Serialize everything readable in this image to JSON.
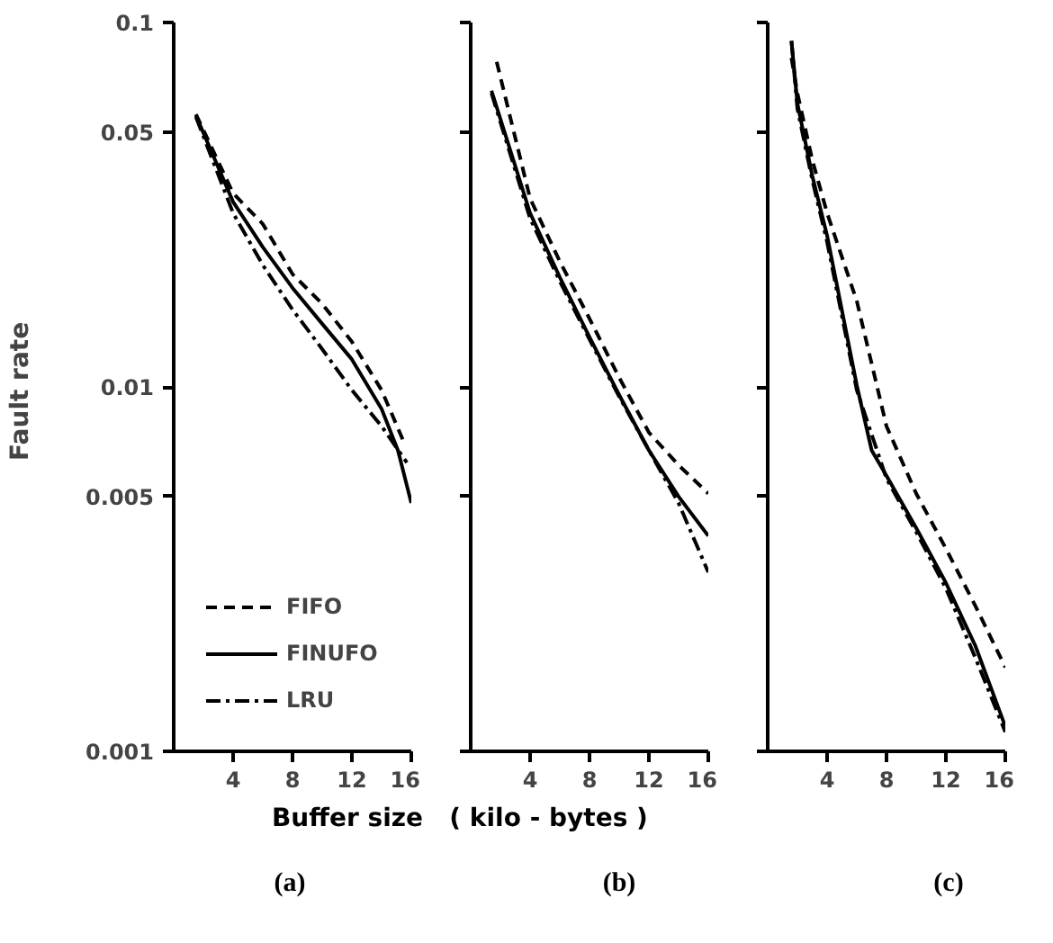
{
  "chart_data": [
    {
      "type": "line",
      "title": "(a)",
      "xlabel": "Buffer size   ( kilo - bytes )",
      "ylabel": "Fault  rate",
      "log": "y",
      "xlim": [
        0,
        16
      ],
      "xticks": [
        4,
        8,
        12,
        16
      ],
      "ylim": [
        0.001,
        0.1
      ],
      "yticks": [
        0.001,
        0.005,
        0.01,
        0.05,
        0.1
      ],
      "legend": "bottom left",
      "grid": false,
      "series": [
        {
          "name": "FIFO",
          "color": "#000000",
          "line_style": "dashed",
          "x": [
            1.5,
            4,
            6,
            8,
            10,
            12,
            14,
            15.6
          ],
          "values": [
            0.056,
            0.034,
            0.028,
            0.0204,
            0.0169,
            0.0133,
            0.0098,
            0.0069
          ]
        },
        {
          "name": "FINUFO",
          "color": "#000000",
          "line_style": "solid",
          "x": [
            1.5,
            4,
            6,
            8,
            10,
            12,
            14,
            15.1,
            16
          ],
          "values": [
            0.0555,
            0.0322,
            0.0242,
            0.0187,
            0.0149,
            0.0119,
            0.0087,
            0.0067,
            0.0048
          ]
        },
        {
          "name": "LRU",
          "color": "#000000",
          "line_style": "dashdot",
          "x": [
            1.5,
            4,
            6,
            8,
            10,
            12,
            14,
            15.7
          ],
          "values": [
            0.055,
            0.03,
            0.0216,
            0.0163,
            0.0127,
            0.0098,
            0.0078,
            0.0062
          ]
        }
      ]
    },
    {
      "type": "line",
      "title": "(b)",
      "log": "y",
      "xlim": [
        0,
        16
      ],
      "xticks": [
        4,
        8,
        12,
        16
      ],
      "ylim": [
        0.001,
        0.1
      ],
      "yticks": [
        {
          "value": 0.001,
          "label": null
        },
        {
          "value": 0.005,
          "label": null
        },
        {
          "value": 0.01,
          "label": null
        },
        {
          "value": 0.05,
          "label": null
        },
        {
          "value": 0.1,
          "label": null
        }
      ],
      "tick_labels": "x",
      "grid": false,
      "series": [
        {
          "color": "#000000",
          "line_style": "dashed",
          "x": [
            1.75,
            4,
            6,
            8,
            10,
            12,
            14,
            16
          ],
          "values": [
            0.078,
            0.0329,
            0.0221,
            0.0154,
            0.0106,
            0.0075,
            0.0061,
            0.0051
          ]
        },
        {
          "color": "#000000",
          "line_style": "solid",
          "x": [
            1.4,
            4,
            6,
            8,
            10,
            12,
            14,
            16
          ],
          "values": [
            0.065,
            0.03,
            0.02,
            0.0137,
            0.0095,
            0.0067,
            0.005,
            0.0039
          ]
        },
        {
          "color": "#000000",
          "line_style": "dashdot",
          "x": [
            1.4,
            4,
            6,
            8,
            10,
            12,
            14,
            16
          ],
          "values": [
            0.064,
            0.029,
            0.0195,
            0.0135,
            0.0094,
            0.0067,
            0.0048,
            0.0031
          ]
        }
      ]
    },
    {
      "type": "line",
      "title": "(c)",
      "log": "y",
      "xlim": [
        0,
        16
      ],
      "xticks": [
        4,
        8,
        12,
        16
      ],
      "ylim": [
        0.001,
        0.1
      ],
      "yticks": [
        {
          "value": 0.001,
          "label": null
        },
        {
          "value": 0.005,
          "label": null
        },
        {
          "value": 0.01,
          "label": null
        },
        {
          "value": 0.05,
          "label": null
        },
        {
          "value": 0.1,
          "label": null
        }
      ],
      "tick_labels": "x",
      "grid": false,
      "series": [
        {
          "color": "#000000",
          "line_style": "dashed",
          "x": [
            1.6,
            2,
            3,
            4,
            6,
            8,
            10,
            12,
            14,
            16
          ],
          "values": [
            0.08,
            0.064,
            0.042,
            0.03,
            0.0172,
            0.0078,
            0.0051,
            0.0036,
            0.0025,
            0.0017
          ]
        },
        {
          "color": "#000000",
          "line_style": "solid",
          "x": [
            1.6,
            2,
            3,
            4,
            6,
            7,
            8,
            10,
            12,
            14,
            16
          ],
          "values": [
            0.089,
            0.06,
            0.038,
            0.026,
            0.0101,
            0.0067,
            0.0057,
            0.0041,
            0.0029,
            0.00194,
            0.00117
          ]
        },
        {
          "color": "#000000",
          "line_style": "dashdot",
          "x": [
            1.6,
            2,
            3,
            4,
            6,
            8,
            10,
            12,
            14,
            16
          ],
          "values": [
            0.089,
            0.058,
            0.037,
            0.025,
            0.0098,
            0.0056,
            0.004,
            0.0028,
            0.0018,
            0.00113
          ]
        }
      ]
    }
  ]
}
